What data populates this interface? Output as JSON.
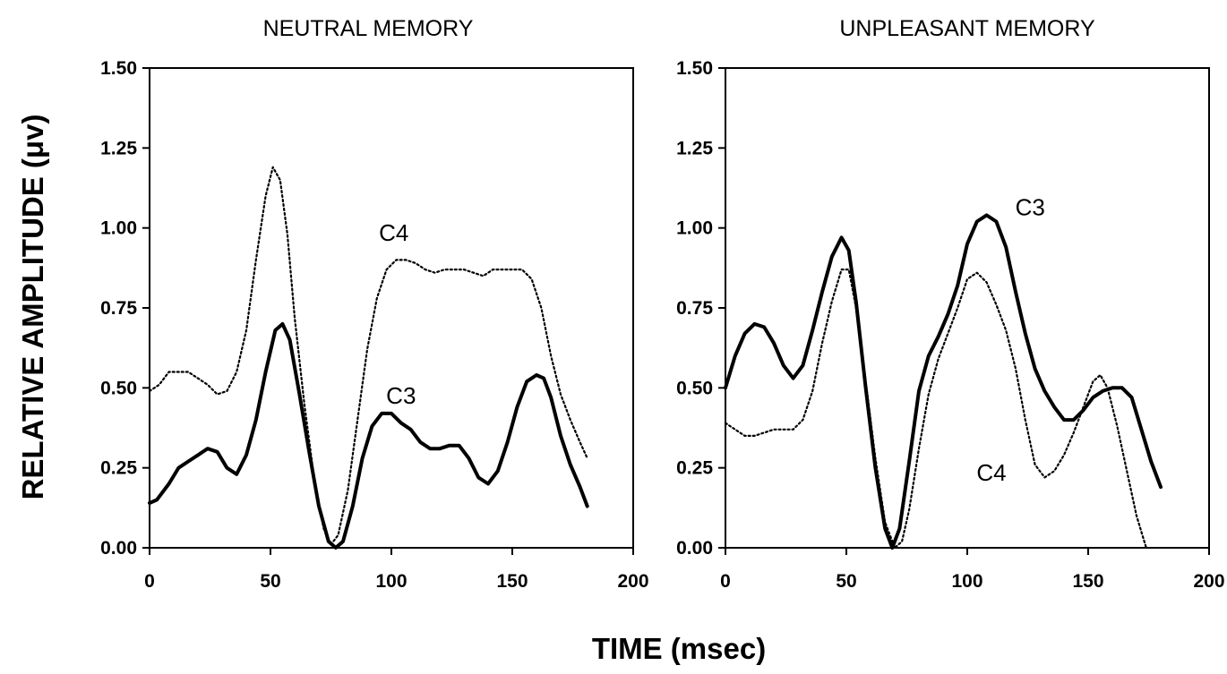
{
  "figure": {
    "ylabel": "RELATIVE AMPLITUDE (μv)",
    "xlabel": "TIME (msec)"
  },
  "chart_data": [
    {
      "type": "line",
      "title": "NEUTRAL MEMORY",
      "xlabel": "TIME (msec)",
      "ylabel": "RELATIVE AMPLITUDE (μv)",
      "xlim": [
        0,
        200
      ],
      "ylim": [
        0,
        1.5
      ],
      "xticks": [
        0,
        50,
        100,
        150,
        200
      ],
      "xtick_labels": [
        "0",
        "50",
        "100",
        "150",
        "200"
      ],
      "yticks": [
        0,
        0.25,
        0.5,
        0.75,
        1.0,
        1.25,
        1.5
      ],
      "ytick_labels": [
        "0.00",
        "0.25",
        "0.50",
        "0.75",
        "1.00",
        "1.25",
        "1.50"
      ],
      "grid": false,
      "legend": "none",
      "series": [
        {
          "name": "C3",
          "style": "solid",
          "color": "#000000",
          "label_at": [
            104,
            0.45
          ],
          "x": [
            0,
            3,
            8,
            12,
            16,
            20,
            24,
            28,
            32,
            36,
            40,
            44,
            48,
            52,
            55,
            58,
            62,
            66,
            70,
            74,
            77,
            80,
            84,
            88,
            92,
            96,
            100,
            104,
            108,
            112,
            116,
            120,
            124,
            128,
            132,
            136,
            140,
            144,
            148,
            152,
            156,
            160,
            163,
            166,
            170,
            174,
            178,
            181
          ],
          "y": [
            0.14,
            0.15,
            0.2,
            0.25,
            0.27,
            0.29,
            0.31,
            0.3,
            0.25,
            0.23,
            0.29,
            0.4,
            0.55,
            0.68,
            0.7,
            0.65,
            0.48,
            0.3,
            0.13,
            0.02,
            0.0,
            0.02,
            0.13,
            0.28,
            0.38,
            0.42,
            0.42,
            0.39,
            0.37,
            0.33,
            0.31,
            0.31,
            0.32,
            0.32,
            0.28,
            0.22,
            0.2,
            0.24,
            0.33,
            0.44,
            0.52,
            0.54,
            0.53,
            0.47,
            0.35,
            0.26,
            0.19,
            0.13
          ]
        },
        {
          "name": "C4",
          "style": "dotted",
          "color": "#000000",
          "label_at": [
            101,
            0.96
          ],
          "x": [
            0,
            4,
            8,
            12,
            16,
            20,
            24,
            28,
            32,
            36,
            40,
            44,
            48,
            51,
            54,
            57,
            60,
            64,
            68,
            72,
            75,
            78,
            82,
            86,
            90,
            94,
            98,
            102,
            106,
            110,
            114,
            118,
            122,
            126,
            130,
            134,
            138,
            142,
            146,
            150,
            154,
            158,
            162,
            166,
            170,
            174,
            178,
            181
          ],
          "y": [
            0.49,
            0.51,
            0.55,
            0.55,
            0.55,
            0.53,
            0.51,
            0.48,
            0.49,
            0.55,
            0.68,
            0.9,
            1.1,
            1.19,
            1.15,
            0.98,
            0.72,
            0.45,
            0.22,
            0.06,
            0.01,
            0.04,
            0.18,
            0.4,
            0.62,
            0.78,
            0.87,
            0.9,
            0.9,
            0.89,
            0.87,
            0.86,
            0.87,
            0.87,
            0.87,
            0.86,
            0.85,
            0.87,
            0.87,
            0.87,
            0.87,
            0.84,
            0.75,
            0.6,
            0.48,
            0.4,
            0.33,
            0.28
          ]
        }
      ]
    },
    {
      "type": "line",
      "title": "UNPLEASANT MEMORY",
      "xlabel": "TIME (msec)",
      "ylabel": "RELATIVE AMPLITUDE (μv)",
      "xlim": [
        0,
        200
      ],
      "ylim": [
        0,
        1.5
      ],
      "xticks": [
        0,
        50,
        100,
        150,
        200
      ],
      "xtick_labels": [
        "0",
        "50",
        "100",
        "150",
        "200"
      ],
      "yticks": [
        0,
        0.25,
        0.5,
        0.75,
        1.0,
        1.25,
        1.5
      ],
      "ytick_labels": [
        "0.00",
        "0.25",
        "0.50",
        "0.75",
        "1.00",
        "1.25",
        "1.50"
      ],
      "grid": false,
      "legend": "none",
      "series": [
        {
          "name": "C3",
          "style": "solid",
          "color": "#000000",
          "label_at": [
            126,
            1.04
          ],
          "x": [
            0,
            4,
            8,
            12,
            16,
            20,
            24,
            28,
            32,
            36,
            40,
            44,
            48,
            51,
            54,
            58,
            62,
            66,
            69,
            72,
            76,
            80,
            84,
            88,
            92,
            96,
            100,
            104,
            108,
            112,
            116,
            120,
            124,
            128,
            132,
            136,
            140,
            144,
            148,
            152,
            156,
            160,
            164,
            168,
            172,
            176,
            180
          ],
          "y": [
            0.5,
            0.6,
            0.67,
            0.7,
            0.69,
            0.64,
            0.57,
            0.53,
            0.57,
            0.68,
            0.8,
            0.91,
            0.97,
            0.93,
            0.77,
            0.5,
            0.25,
            0.06,
            0.0,
            0.06,
            0.27,
            0.49,
            0.6,
            0.66,
            0.73,
            0.82,
            0.95,
            1.02,
            1.04,
            1.02,
            0.94,
            0.8,
            0.67,
            0.56,
            0.49,
            0.44,
            0.4,
            0.4,
            0.43,
            0.47,
            0.49,
            0.5,
            0.5,
            0.47,
            0.37,
            0.27,
            0.19
          ]
        },
        {
          "name": "C4",
          "style": "dotted",
          "color": "#000000",
          "label_at": [
            110,
            0.21
          ],
          "x": [
            0,
            4,
            8,
            12,
            16,
            20,
            24,
            28,
            32,
            36,
            40,
            44,
            48,
            51,
            54,
            58,
            62,
            66,
            70,
            73,
            76,
            80,
            84,
            88,
            92,
            96,
            100,
            104,
            108,
            112,
            116,
            120,
            124,
            128,
            132,
            136,
            140,
            144,
            148,
            152,
            155,
            158,
            162,
            166,
            170,
            174
          ],
          "y": [
            0.39,
            0.37,
            0.35,
            0.35,
            0.36,
            0.37,
            0.37,
            0.37,
            0.4,
            0.49,
            0.64,
            0.77,
            0.87,
            0.87,
            0.75,
            0.52,
            0.28,
            0.08,
            0.0,
            0.02,
            0.12,
            0.31,
            0.48,
            0.59,
            0.67,
            0.75,
            0.84,
            0.86,
            0.83,
            0.76,
            0.68,
            0.56,
            0.4,
            0.26,
            0.22,
            0.24,
            0.29,
            0.36,
            0.44,
            0.52,
            0.54,
            0.5,
            0.38,
            0.24,
            0.1,
            0.0
          ]
        }
      ]
    }
  ]
}
